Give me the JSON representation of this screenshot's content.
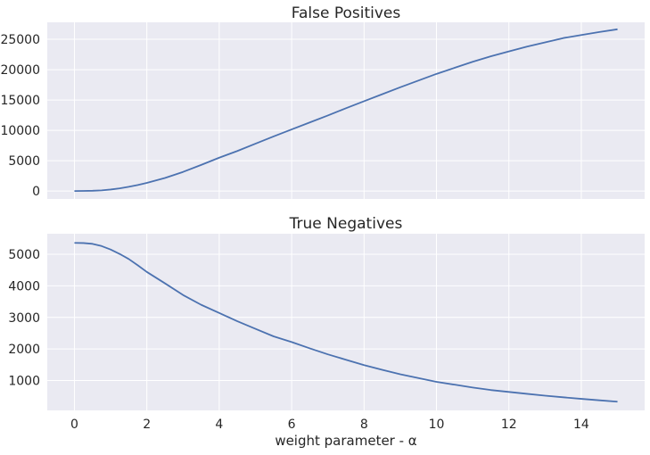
{
  "chart_data": [
    {
      "type": "line",
      "title": "False Positives",
      "xlabel": "",
      "ylabel": "",
      "xlim": [
        -0.75,
        15.75
      ],
      "ylim": [
        -1300,
        27800
      ],
      "x_ticks": [
        0,
        2,
        4,
        6,
        8,
        10,
        12,
        14
      ],
      "y_ticks": [
        0,
        5000,
        10000,
        15000,
        20000,
        25000
      ],
      "y_tick_labels": [
        "0",
        "5000",
        "10000",
        "15000",
        "20000",
        "25000"
      ],
      "grid": true,
      "color": "#4c72b0",
      "series": [
        {
          "x": [
            0,
            0.25,
            0.5,
            0.75,
            1,
            1.25,
            1.5,
            1.75,
            2,
            2.5,
            3,
            3.5,
            4,
            4.5,
            5,
            5.5,
            6,
            6.5,
            7,
            7.5,
            8,
            8.5,
            9,
            9.5,
            10,
            10.5,
            11,
            11.5,
            12,
            12.5,
            13,
            13.5,
            14,
            14.5,
            15
          ],
          "y": [
            0,
            20,
            50,
            120,
            250,
            450,
            700,
            1000,
            1350,
            2150,
            3150,
            4300,
            5500,
            6600,
            7800,
            9000,
            10150,
            11300,
            12450,
            13650,
            14800,
            15950,
            17100,
            18200,
            19300,
            20300,
            21300,
            22200,
            23000,
            23800,
            24500,
            25200,
            25700,
            26200,
            26650
          ]
        }
      ]
    },
    {
      "type": "line",
      "title": "True Negatives",
      "xlabel": "weight parameter - α",
      "ylabel": "",
      "xlim": [
        -0.75,
        15.75
      ],
      "ylim": [
        55,
        5650
      ],
      "x_ticks": [
        0,
        2,
        4,
        6,
        8,
        10,
        12,
        14
      ],
      "x_tick_labels": [
        "0",
        "2",
        "4",
        "6",
        "8",
        "10",
        "12",
        "14"
      ],
      "y_ticks": [
        1000,
        2000,
        3000,
        4000,
        5000
      ],
      "y_tick_labels": [
        "1000",
        "2000",
        "3000",
        "4000",
        "5000"
      ],
      "grid": true,
      "color": "#4c72b0",
      "series": [
        {
          "x": [
            0,
            0.25,
            0.5,
            0.75,
            1,
            1.25,
            1.5,
            1.75,
            2,
            2.5,
            3,
            3.5,
            4,
            4.5,
            5,
            5.5,
            6,
            6.5,
            7,
            7.5,
            8,
            8.5,
            9,
            9.5,
            10,
            10.5,
            11,
            11.5,
            12,
            12.5,
            13,
            13.5,
            14,
            14.5,
            15
          ],
          "y": [
            5360,
            5355,
            5330,
            5260,
            5150,
            5010,
            4850,
            4650,
            4440,
            4080,
            3710,
            3400,
            3140,
            2880,
            2640,
            2400,
            2220,
            2020,
            1830,
            1660,
            1490,
            1340,
            1200,
            1080,
            960,
            870,
            780,
            700,
            640,
            580,
            520,
            470,
            420,
            375,
            330
          ]
        }
      ]
    }
  ]
}
